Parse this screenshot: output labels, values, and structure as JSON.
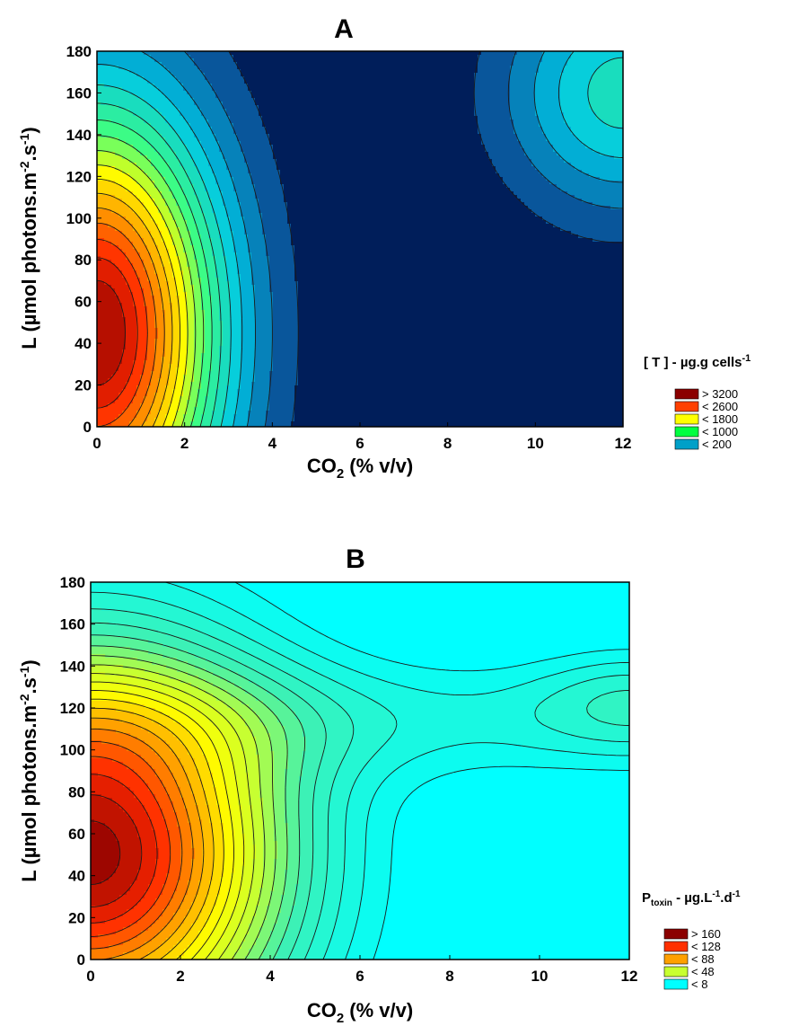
{
  "chart_data": [
    {
      "type": "contour",
      "panel": "A",
      "xlabel": {
        "main": "CO",
        "sub": "2",
        "rest": " (% v/v)"
      },
      "ylabel": {
        "main": "L (µmol photons.m",
        "sup1": "-2",
        "mid": ".s",
        "sup2": "-1",
        "end": ")"
      },
      "xlim": [
        0,
        12
      ],
      "ylim": [
        0,
        180
      ],
      "x_ticks": [
        "0",
        "2",
        "4",
        "6",
        "8",
        "10",
        "12"
      ],
      "y_ticks": [
        "0",
        "20",
        "40",
        "60",
        "80",
        "100",
        "120",
        "140",
        "160",
        "180"
      ],
      "legend_title": {
        "main": "[ T ] - µg.g cells",
        "sup": "-1"
      },
      "legend": [
        {
          "label": "> 3200",
          "color": "#8b0000"
        },
        {
          "label": "< 2600",
          "color": "#ff4000"
        },
        {
          "label": "< 1800",
          "color": "#ffff00"
        },
        {
          "label": "< 1000",
          "color": "#00ff40"
        },
        {
          "label": "< 200",
          "color": "#00a0c8"
        }
      ],
      "field": {
        "peak_value": 3600,
        "peak_x": 0,
        "peak_y": 45,
        "secondary_peak_value": 1100,
        "secondary_peak_x": 12,
        "secondary_peak_y": 160,
        "min_level": 0,
        "max_level": 3600,
        "level_step": 200
      }
    },
    {
      "type": "contour",
      "panel": "B",
      "xlabel": {
        "main": "CO",
        "sub": "2",
        "rest": " (% v/v)"
      },
      "ylabel": {
        "main": "L (µmol photons.m",
        "sup1": "-2",
        "mid": ".s",
        "sup2": "-1",
        "end": ")"
      },
      "xlim": [
        0,
        12
      ],
      "ylim": [
        0,
        180
      ],
      "x_ticks": [
        "0",
        "2",
        "4",
        "6",
        "8",
        "10",
        "12"
      ],
      "y_ticks": [
        "0",
        "20",
        "40",
        "60",
        "80",
        "100",
        "120",
        "140",
        "160",
        "180"
      ],
      "legend_title": {
        "main": "P",
        "sub": "toxin",
        "rest": " - µg.L",
        "sup1": "-1",
        "mid": ".d",
        "sup2": "-1"
      },
      "legend": [
        {
          "label": "> 160",
          "color": "#8b0000"
        },
        {
          "label": "< 128",
          "color": "#ff3000"
        },
        {
          "label": "< 88",
          "color": "#ffa000"
        },
        {
          "label": "< 48",
          "color": "#c8ff30"
        },
        {
          "label": "< 8",
          "color": "#00ffff"
        }
      ],
      "field": {
        "peak_value": 180,
        "peak_x": 0,
        "peak_y": 50,
        "secondary_peak_value": 45,
        "secondary_peak_x": 12,
        "secondary_peak_y": 125,
        "min_level": 8,
        "max_level": 180,
        "level_step": 8
      }
    }
  ],
  "colors": {
    "a_low": "#001e5a",
    "b_low": "#00ffff",
    "contour_line": "#1a1a1a"
  }
}
